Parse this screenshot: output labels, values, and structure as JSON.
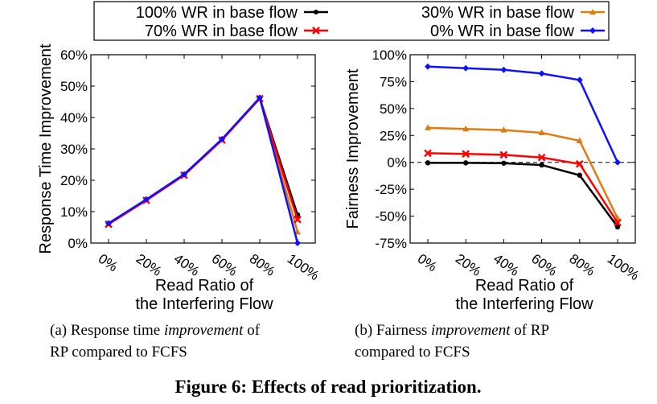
{
  "legend": {
    "entries": [
      {
        "label": "100% WR in base flow",
        "color": "#000000",
        "marker": "circle"
      },
      {
        "label": "30% WR in base flow",
        "color": "#e07b10",
        "marker": "triangle"
      },
      {
        "label": "70% WR in base flow",
        "color": "#ff0000",
        "marker": "x"
      },
      {
        "label": "0% WR in base flow",
        "color": "#1010ff",
        "marker": "diamond"
      }
    ]
  },
  "captions": {
    "a_prefix": "(a) Response time",
    "a_emph": "improvement",
    "a_suffix": "of",
    "a_line2": "RP compared to FCFS",
    "b_prefix": "(b) Fairness",
    "b_emph": "improvement",
    "b_suffix": "of RP",
    "b_line2": "compared to FCFS",
    "figure": "Figure 6: Effects of read prioritization."
  },
  "chart_data": [
    {
      "type": "line",
      "id": "a",
      "categories": [
        "0%",
        "20%",
        "40%",
        "60%",
        "80%",
        "100%"
      ],
      "xlabel": [
        "Read Ratio of",
        "the Interfering Flow"
      ],
      "ylabel": "Response Time Improvement",
      "ylim": [
        0,
        60
      ],
      "yticks": [
        0,
        10,
        20,
        30,
        40,
        50,
        60
      ],
      "ytick_labels": [
        "0%",
        "10%",
        "20%",
        "30%",
        "40%",
        "50%",
        "60%"
      ],
      "grid": false,
      "zero_line": false,
      "series": [
        {
          "name": "100% WR in base flow",
          "color": "#000000",
          "marker": "circle",
          "values": [
            6.2,
            13.8,
            21.8,
            33.0,
            46.2,
            9.0
          ]
        },
        {
          "name": "30% WR in base flow",
          "color": "#e07b10",
          "marker": "triangle",
          "values": [
            6.1,
            13.7,
            21.7,
            32.9,
            46.1,
            3.5
          ]
        },
        {
          "name": "70% WR in base flow",
          "color": "#ff0000",
          "marker": "x",
          "values": [
            6.0,
            13.6,
            21.6,
            32.8,
            46.0,
            7.5
          ]
        },
        {
          "name": "0% WR in base flow",
          "color": "#1010ff",
          "marker": "diamond",
          "values": [
            6.3,
            13.9,
            21.9,
            33.1,
            46.3,
            0.0
          ]
        }
      ]
    },
    {
      "type": "line",
      "id": "b",
      "categories": [
        "0%",
        "20%",
        "40%",
        "60%",
        "80%",
        "100%"
      ],
      "xlabel": [
        "Read Ratio of",
        "the Interfering Flow"
      ],
      "ylabel": "Fairness Improvement",
      "ylim": [
        -75,
        100
      ],
      "yticks": [
        -75,
        -50,
        -25,
        0,
        25,
        50,
        75,
        100
      ],
      "ytick_labels": [
        "-75%",
        "-50%",
        "-25%",
        "0%",
        "25%",
        "50%",
        "75%",
        "100%"
      ],
      "grid": false,
      "zero_line": true,
      "series": [
        {
          "name": "100% WR in base flow",
          "color": "#000000",
          "marker": "circle",
          "values": [
            -0.5,
            -0.5,
            -0.8,
            -2.5,
            -12,
            -60
          ]
        },
        {
          "name": "30% WR in base flow",
          "color": "#e07b10",
          "marker": "triangle",
          "values": [
            32,
            31,
            30,
            27.5,
            20,
            -52
          ]
        },
        {
          "name": "70% WR in base flow",
          "color": "#ff0000",
          "marker": "x",
          "values": [
            8.5,
            7.8,
            7.0,
            4.5,
            -1.5,
            -56
          ]
        },
        {
          "name": "0% WR in base flow",
          "color": "#1010ff",
          "marker": "diamond",
          "values": [
            89,
            87.5,
            86,
            82.5,
            76.5,
            0
          ]
        }
      ]
    }
  ]
}
